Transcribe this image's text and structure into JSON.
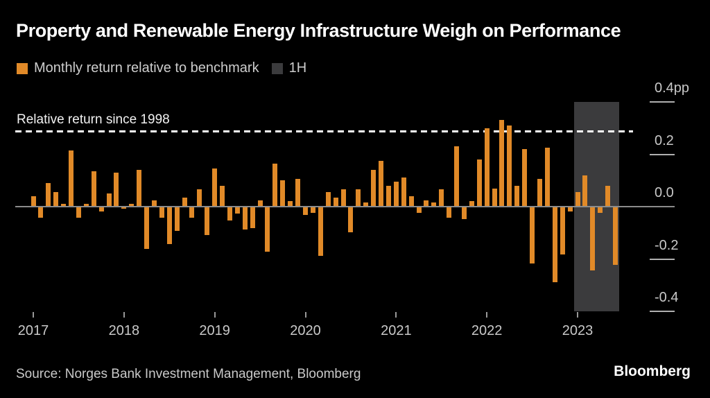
{
  "header": {
    "title": "Property and Renewable Energy Infrastructure Weigh on Performance"
  },
  "legend": {
    "items": [
      {
        "label": "Monthly return relative to benchmark",
        "color": "#E18A28"
      },
      {
        "label": "1H",
        "color": "#3B3B3D"
      }
    ]
  },
  "footer": {
    "source": "Source: Norges Bank Investment Management, Bloomberg",
    "logo": "Bloomberg"
  },
  "chart_data": {
    "type": "bar",
    "title": "Property and Renewable Energy Infrastructure Weigh on Performance",
    "series_name": "Monthly return relative to benchmark",
    "unit": "pp",
    "frequency": "monthly",
    "x_start": "2017-01",
    "x_end": "2023-06",
    "values_by_year": {
      "2017": [
        0.04,
        -0.04,
        0.09,
        0.055,
        0.01,
        0.215,
        -0.04,
        0.01,
        0.135,
        -0.015,
        0.05,
        0.13
      ],
      "2018": [
        -0.005,
        0.01,
        0.14,
        -0.16,
        0.025,
        -0.04,
        -0.14,
        -0.09,
        0.035,
        -0.04,
        0.065,
        -0.105
      ],
      "2019": [
        0.145,
        0.08,
        -0.05,
        -0.025,
        -0.085,
        -0.08,
        0.025,
        -0.17,
        0.165,
        0.1,
        0.02,
        0.105
      ],
      "2020": [
        -0.03,
        -0.02,
        -0.185,
        0.055,
        0.035,
        0.065,
        -0.095,
        0.065,
        0.015,
        0.14,
        0.175,
        0.08
      ],
      "2021": [
        0.095,
        0.11,
        0.04,
        -0.02,
        0.025,
        0.015,
        0.065,
        -0.04,
        0.23,
        -0.045,
        0.02,
        0.18
      ],
      "2022": [
        0.3,
        0.07,
        0.33,
        0.31,
        0.08,
        0.22,
        -0.215,
        0.105,
        0.225,
        -0.285,
        -0.18,
        -0.015
      ],
      "2023": [
        0.055,
        0.12,
        -0.24,
        -0.02,
        0.08,
        -0.22
      ]
    },
    "x_tick_labels": [
      "2017",
      "2018",
      "2019",
      "2020",
      "2021",
      "2022",
      "2023"
    ],
    "y_ticks": [
      0.4,
      0.2,
      0.0,
      -0.2,
      -0.4
    ],
    "y_tick_labels": [
      "0.4pp",
      "0.2",
      "0.0",
      "-0.2",
      "-0.4"
    ],
    "ylim": [
      -0.47,
      0.45
    ],
    "grid": false,
    "legend_position": "top-left",
    "reference_line": {
      "label": "Relative return since 1998",
      "value": 0.29,
      "style": "dashed",
      "color": "#FFFFFF"
    },
    "highlight_region": {
      "label": "1H",
      "start": "2023-01",
      "end": "2023-06",
      "color": "#3B3B3D"
    },
    "bar_color": "#E18A28",
    "background_color": "#000000"
  }
}
